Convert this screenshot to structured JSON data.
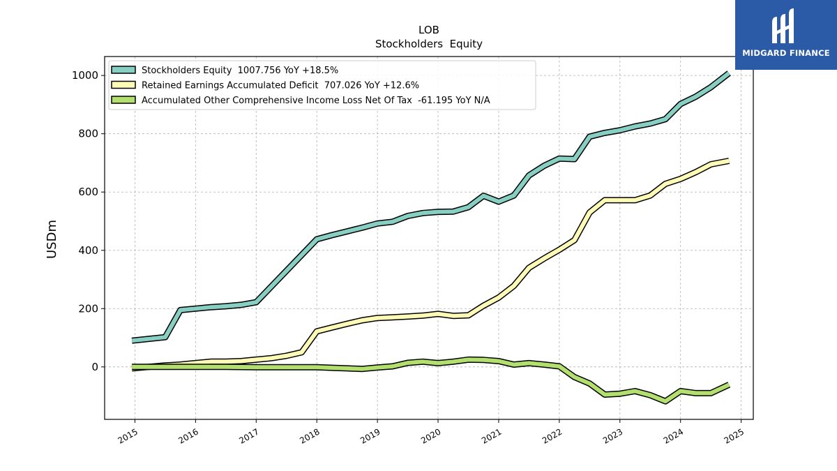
{
  "logo": {
    "text": "MIDGARD FINANCE",
    "color": "#2b5aa6"
  },
  "chart_data": {
    "type": "line",
    "title": "LOB",
    "subtitle": "Stockholders  Equity",
    "ylabel": "USDm",
    "xlabel": "",
    "ylim": [
      -180,
      1065
    ],
    "xlim": [
      2014.5,
      2025.2
    ],
    "yticks": [
      0,
      200,
      400,
      600,
      800,
      1000
    ],
    "xticks": [
      2015,
      2016,
      2017,
      2018,
      2019,
      2020,
      2021,
      2022,
      2023,
      2024,
      2025
    ],
    "grid": true,
    "legend_position": "top-left",
    "series": [
      {
        "name": "Stockholders Equity  1007.756 YoY +18.5%",
        "color": "#86cfc2",
        "points": [
          [
            2014.95,
            90
          ],
          [
            2015.5,
            102
          ],
          [
            2015.75,
            195
          ],
          [
            2016.0,
            200
          ],
          [
            2016.25,
            205
          ],
          [
            2016.5,
            208
          ],
          [
            2016.75,
            213
          ],
          [
            2017.0,
            222
          ],
          [
            2018.0,
            438
          ],
          [
            2018.25,
            452
          ],
          [
            2018.5,
            465
          ],
          [
            2018.75,
            478
          ],
          [
            2019.0,
            492
          ],
          [
            2019.25,
            498
          ],
          [
            2019.5,
            518
          ],
          [
            2019.75,
            528
          ],
          [
            2020.0,
            532
          ],
          [
            2020.25,
            533
          ],
          [
            2020.5,
            548
          ],
          [
            2020.75,
            587
          ],
          [
            2021.0,
            567
          ],
          [
            2021.25,
            588
          ],
          [
            2021.5,
            657
          ],
          [
            2021.75,
            690
          ],
          [
            2022.0,
            715
          ],
          [
            2022.25,
            713
          ],
          [
            2022.5,
            790
          ],
          [
            2022.75,
            803
          ],
          [
            2023.0,
            812
          ],
          [
            2023.25,
            825
          ],
          [
            2023.5,
            835
          ],
          [
            2023.75,
            850
          ],
          [
            2024.0,
            902
          ],
          [
            2024.25,
            927
          ],
          [
            2024.5,
            960
          ],
          [
            2024.8,
            1008
          ]
        ]
      },
      {
        "name": "Retained Earnings Accumulated Deficit  707.026 YoY +12.6%",
        "color": "#fefbb6",
        "points": [
          [
            2014.95,
            -5
          ],
          [
            2015.5,
            5
          ],
          [
            2015.75,
            8
          ],
          [
            2016.0,
            13
          ],
          [
            2016.25,
            18
          ],
          [
            2016.5,
            18
          ],
          [
            2016.75,
            20
          ],
          [
            2017.0,
            25
          ],
          [
            2017.25,
            30
          ],
          [
            2017.5,
            38
          ],
          [
            2017.75,
            50
          ],
          [
            2018.0,
            122
          ],
          [
            2018.25,
            135
          ],
          [
            2018.5,
            148
          ],
          [
            2018.75,
            160
          ],
          [
            2019.0,
            168
          ],
          [
            2019.25,
            170
          ],
          [
            2019.5,
            173
          ],
          [
            2019.75,
            176
          ],
          [
            2020.0,
            182
          ],
          [
            2020.25,
            175
          ],
          [
            2020.5,
            177
          ],
          [
            2020.75,
            210
          ],
          [
            2021.0,
            238
          ],
          [
            2021.25,
            278
          ],
          [
            2021.5,
            340
          ],
          [
            2021.75,
            372
          ],
          [
            2022.0,
            402
          ],
          [
            2022.25,
            435
          ],
          [
            2022.5,
            530
          ],
          [
            2022.75,
            572
          ],
          [
            2023.0,
            572
          ],
          [
            2023.25,
            572
          ],
          [
            2023.5,
            588
          ],
          [
            2023.75,
            628
          ],
          [
            2024.0,
            645
          ],
          [
            2024.25,
            668
          ],
          [
            2024.5,
            695
          ],
          [
            2024.8,
            707
          ]
        ]
      },
      {
        "name": "Accumulated Other Comprehensive Income Loss Net Of Tax  -61.195 YoY N/A",
        "color": "#b2df6e",
        "points": [
          [
            2014.95,
            0
          ],
          [
            2015.5,
            0
          ],
          [
            2016.0,
            0
          ],
          [
            2016.5,
            0
          ],
          [
            2017.0,
            -1
          ],
          [
            2017.5,
            -1
          ],
          [
            2018.0,
            -1
          ],
          [
            2018.25,
            -3
          ],
          [
            2018.5,
            -5
          ],
          [
            2018.75,
            -7
          ],
          [
            2019.0,
            -2
          ],
          [
            2019.25,
            2
          ],
          [
            2019.5,
            14
          ],
          [
            2019.75,
            18
          ],
          [
            2020.0,
            13
          ],
          [
            2020.25,
            18
          ],
          [
            2020.5,
            25
          ],
          [
            2020.75,
            24
          ],
          [
            2021.0,
            20
          ],
          [
            2021.25,
            8
          ],
          [
            2021.5,
            13
          ],
          [
            2021.75,
            8
          ],
          [
            2022.0,
            2
          ],
          [
            2022.25,
            -35
          ],
          [
            2022.5,
            -57
          ],
          [
            2022.75,
            -95
          ],
          [
            2023.0,
            -92
          ],
          [
            2023.25,
            -83
          ],
          [
            2023.5,
            -97
          ],
          [
            2023.75,
            -118
          ],
          [
            2024.0,
            -83
          ],
          [
            2024.25,
            -90
          ],
          [
            2024.5,
            -90
          ],
          [
            2024.8,
            -61
          ]
        ]
      }
    ]
  }
}
